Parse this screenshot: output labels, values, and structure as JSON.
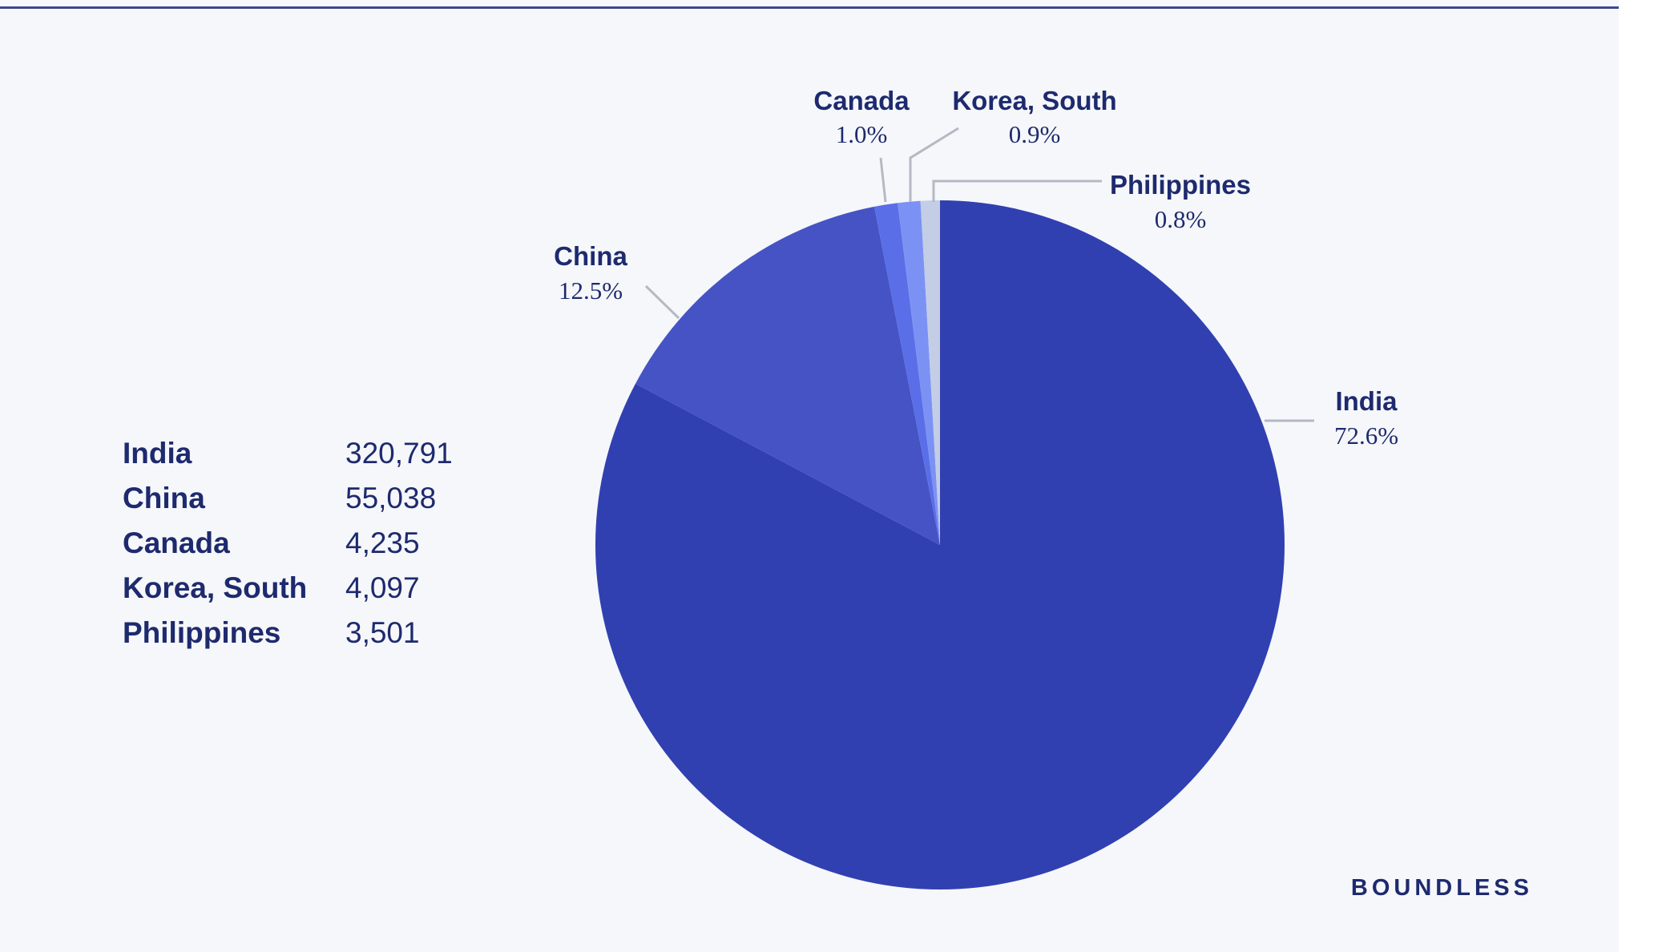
{
  "chart_data": {
    "type": "pie",
    "slices": [
      {
        "label": "India",
        "value": 320791,
        "percent_label": "72.6%",
        "color": "#3140b0"
      },
      {
        "label": "China",
        "value": 55038,
        "percent_label": "12.5%",
        "color": "#4553c4"
      },
      {
        "label": "Canada",
        "value": 4235,
        "percent_label": "1.0%",
        "color": "#5a6ee8"
      },
      {
        "label": "Korea, South",
        "value": 4097,
        "percent_label": "0.9%",
        "color": "#7b92f4"
      },
      {
        "label": "Philippines",
        "value": 3501,
        "percent_label": "0.8%",
        "color": "#c4cde6"
      }
    ],
    "table": [
      {
        "name": "India",
        "value": "320,791"
      },
      {
        "name": "China",
        "value": "55,038"
      },
      {
        "name": "Canada",
        "value": "4,235"
      },
      {
        "name": "Korea, South",
        "value": "4,097"
      },
      {
        "name": "Philippines",
        "value": "3,501"
      }
    ],
    "legend_position": "left"
  },
  "brand": "BOUNDLESS"
}
